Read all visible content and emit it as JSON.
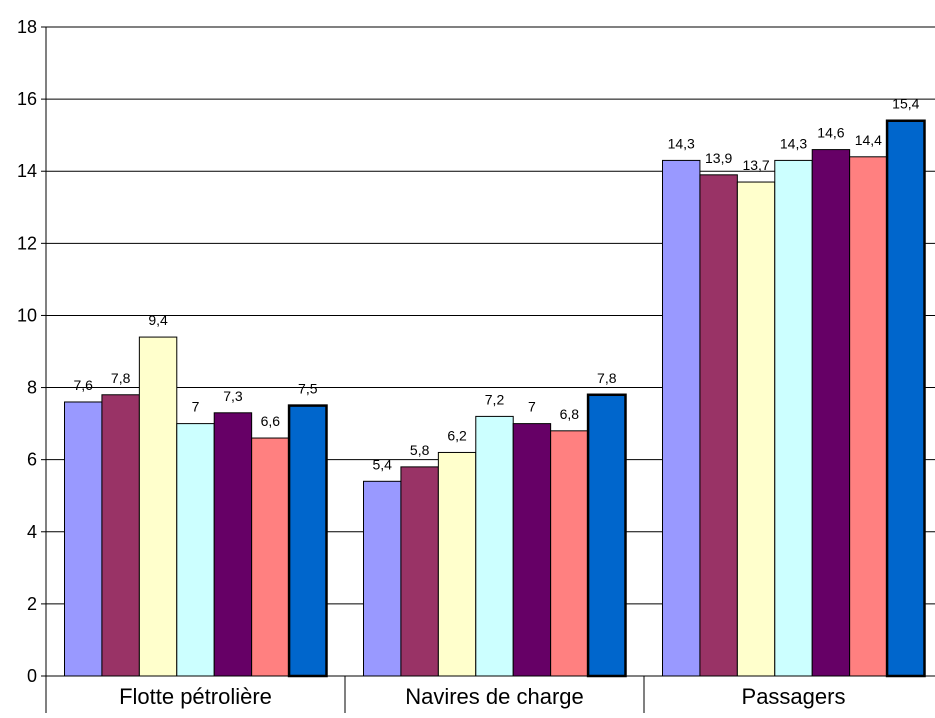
{
  "chart_data": {
    "type": "bar",
    "title": "",
    "xlabel": "",
    "ylabel": "",
    "categories": [
      "Flotte pétrolière",
      "Navires de charge",
      "Passagers"
    ],
    "series": [
      {
        "values": [
          7.6,
          5.4,
          14.3
        ],
        "color": "#9999ff"
      },
      {
        "values": [
          7.8,
          5.8,
          13.9
        ],
        "color": "#993366"
      },
      {
        "values": [
          9.4,
          6.2,
          13.7
        ],
        "color": "#ffffcc"
      },
      {
        "values": [
          7.0,
          7.2,
          14.3
        ],
        "color": "#ccffff"
      },
      {
        "values": [
          7.3,
          7.0,
          14.6
        ],
        "color": "#660066"
      },
      {
        "values": [
          6.6,
          6.8,
          14.4
        ],
        "color": "#ff8080"
      },
      {
        "values": [
          7.5,
          7.8,
          15.4
        ],
        "color": "#0066cc"
      }
    ],
    "data_labels": [
      [
        "7,6",
        "5,4",
        "14,3"
      ],
      [
        "7,8",
        "5,8",
        "13,9"
      ],
      [
        "9,4",
        "6,2",
        "13,7"
      ],
      [
        "7",
        "7,2",
        "14,3"
      ],
      [
        "7,3",
        "7",
        "14,6"
      ],
      [
        "6,6",
        "6,8",
        "14,4"
      ],
      [
        "7,5",
        "7,8",
        "15,4"
      ]
    ],
    "ylim": [
      0,
      18
    ],
    "yticks": [
      0,
      2,
      4,
      6,
      8,
      10,
      12,
      14,
      16,
      18
    ],
    "grid": true,
    "legend": "none"
  }
}
